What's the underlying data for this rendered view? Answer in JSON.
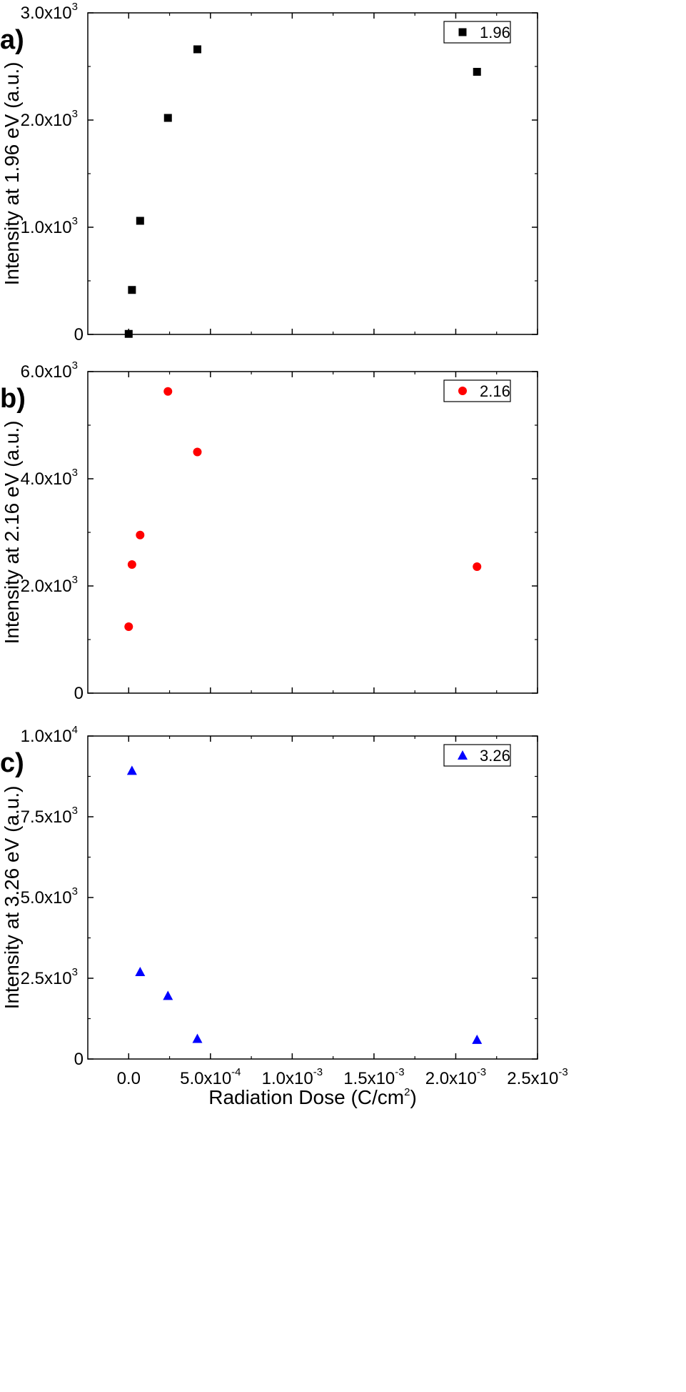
{
  "figure": {
    "xlabel": "Radiation Dose (C/cm",
    "xlabel_sup": "2",
    "xlabel_tail": ")",
    "xticks": [
      {
        "label": "0.0",
        "exp": ""
      },
      {
        "label": "5.0x10",
        "exp": "-4"
      },
      {
        "label": "1.0x10",
        "exp": "-3"
      },
      {
        "label": "1.5x10",
        "exp": "-3"
      },
      {
        "label": "2.0x10",
        "exp": "-3"
      },
      {
        "label": "2.5x10",
        "exp": "-3"
      }
    ]
  },
  "chart_data": [
    {
      "type": "scatter",
      "panel_label": "a)",
      "ylabel": "Intensity at 1.96 eV (a.u.)",
      "xlim": [
        -0.00025,
        0.0025
      ],
      "ylim": [
        0,
        3000
      ],
      "yticks": [
        {
          "label": "0",
          "exp": ""
        },
        {
          "label": "1.0x10",
          "exp": "3"
        },
        {
          "label": "2.0x10",
          "exp": "3"
        },
        {
          "label": "3.0x10",
          "exp": "3"
        }
      ],
      "legend_placement": "top-right",
      "grid": false,
      "series": [
        {
          "name": "1.96",
          "marker": "square",
          "color": "#000000",
          "x": [
            0,
            2e-05,
            7e-05,
            0.00024,
            0.00042,
            0.00213
          ],
          "y": [
            5,
            415,
            1060,
            2020,
            2660,
            2450
          ]
        }
      ]
    },
    {
      "type": "scatter",
      "panel_label": "b)",
      "ylabel": "Intensity at 2.16 eV (a.u.)",
      "xlim": [
        -0.00025,
        0.0025
      ],
      "ylim": [
        0,
        6000
      ],
      "yticks": [
        {
          "label": "0",
          "exp": ""
        },
        {
          "label": "2.0x10",
          "exp": "3"
        },
        {
          "label": "4.0x10",
          "exp": "3"
        },
        {
          "label": "6.0x10",
          "exp": "3"
        }
      ],
      "legend_placement": "top-right",
      "grid": false,
      "series": [
        {
          "name": "2.16",
          "marker": "circle",
          "color": "#ff0000",
          "x": [
            0,
            2e-05,
            7e-05,
            0.00024,
            0.00042,
            0.00213
          ],
          "y": [
            1240,
            2400,
            2950,
            5630,
            4500,
            2360
          ]
        }
      ]
    },
    {
      "type": "scatter",
      "panel_label": "c)",
      "ylabel": "Intensity at 3.26 eV (a.u.)",
      "xlim": [
        -0.00025,
        0.0025
      ],
      "ylim": [
        0,
        10000
      ],
      "yticks": [
        {
          "label": "0",
          "exp": ""
        },
        {
          "label": "2.5x10",
          "exp": "3"
        },
        {
          "label": "5.0x10",
          "exp": "3"
        },
        {
          "label": "7.5x10",
          "exp": "3"
        },
        {
          "label": "1.0x10",
          "exp": "4"
        }
      ],
      "legend_placement": "top-right",
      "grid": false,
      "series": [
        {
          "name": "3.26",
          "marker": "triangle",
          "color": "#0000ff",
          "x": [
            2e-05,
            7e-05,
            0.00024,
            0.00042,
            0.00213
          ],
          "y": [
            8930,
            2700,
            1960,
            630,
            600
          ]
        }
      ]
    }
  ]
}
